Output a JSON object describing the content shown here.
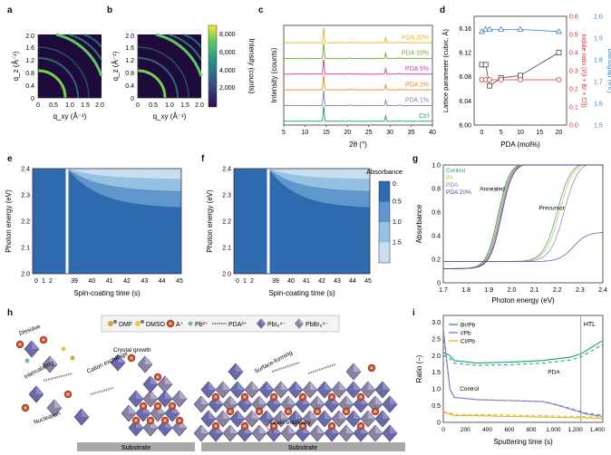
{
  "panels": {
    "a": {
      "label": "a",
      "y_label": "q_z (Å⁻¹)",
      "x_label": "q_xy (Å⁻¹)",
      "y_ticks": [
        "0",
        "0.4",
        "0.8",
        "1.2",
        "1.6",
        "2.0"
      ],
      "x_ticks": [
        "0",
        "0.5",
        "1.0",
        "1.5",
        "2.0"
      ]
    },
    "b": {
      "label": "b",
      "y_label": "q_z (Å⁻¹)",
      "x_label": "q_xy (Å⁻¹)",
      "y_ticks": [
        "0",
        "0.4",
        "0.8",
        "1.2",
        "1.6",
        "2.0"
      ],
      "x_ticks": [
        "0",
        "0.5",
        "1.0",
        "1.5",
        "2.0"
      ]
    },
    "colorbar_ab": {
      "label": "Intensity (counts)",
      "ticks": [
        "2,000",
        "4,000",
        "6,000",
        "8,000"
      ]
    },
    "c": {
      "label": "c"
    },
    "d": {
      "label": "d"
    },
    "e": {
      "label": "e",
      "y_label": "Photon energy (eV)",
      "x_label": "Spin-coating time (s)",
      "y_ticks": [
        "2.0",
        "2.1",
        "2.2",
        "2.3",
        "2.4"
      ],
      "x_ticks": [
        "0",
        "1",
        "2",
        "39",
        "40",
        "41",
        "42",
        "43",
        "44",
        "45"
      ]
    },
    "f": {
      "label": "f",
      "y_label": "Photon energy (eV)",
      "x_label": "Spin-coating time (s)",
      "y_ticks": [
        "2.0",
        "2.1",
        "2.2",
        "2.3",
        "2.4"
      ],
      "x_ticks": [
        "0",
        "1",
        "2",
        "39",
        "40",
        "41",
        "42",
        "43",
        "44",
        "45"
      ]
    },
    "colorbar_ef": {
      "title": "Absorbance",
      "ticks": [
        "0",
        "0.5",
        "1.0",
        "1.5"
      ]
    },
    "g": {
      "label": "g"
    },
    "h": {
      "label": "h",
      "legend": [
        "DMF",
        "DMSO",
        "A⁺",
        "Pb²⁺",
        "PDA²⁺",
        "PbI₆⁴⁻",
        "PbBr₆⁴⁻"
      ],
      "annotations": [
        "Dissolve",
        "Intercalating",
        "Crystal growth",
        "Cation exchange",
        "Nucleation",
        "Surface-forming",
        "Grain boundary"
      ],
      "substrate_left": "Substrate",
      "substrate_right": "Substrate"
    },
    "i": {
      "label": "i"
    }
  },
  "chart_data": [
    {
      "id": "c",
      "type": "line",
      "xlabel": "2θ (°)",
      "ylabel": "Intensity (counts)",
      "xlim": [
        5,
        40
      ],
      "x_ticks": [
        5,
        10,
        15,
        20,
        25,
        30,
        35,
        40
      ],
      "series": [
        {
          "name": "Ctrl",
          "color": "#1a9c83",
          "offset": 0
        },
        {
          "name": "PDA 1%",
          "color": "#7b7fc4",
          "offset": 1
        },
        {
          "name": "PDA 2%",
          "color": "#f08a24",
          "offset": 2
        },
        {
          "name": "PDA 5%",
          "color": "#e0349a",
          "offset": 3
        },
        {
          "name": "PDA 10%",
          "color": "#66b032",
          "offset": 4
        },
        {
          "name": "PDA 20%",
          "color": "#e6b422",
          "offset": 5
        }
      ],
      "peaks": [
        {
          "x": 14.4,
          "h": 1.0
        },
        {
          "x": 29.0,
          "h": 0.35
        },
        {
          "x": 20.4,
          "h": 0.05
        },
        {
          "x": 32.3,
          "h": 0.05
        }
      ]
    },
    {
      "id": "d",
      "type": "line",
      "xlabel": "PDA (mol%)",
      "ylabel": "Lattice parameter (cubic, Å)",
      "y2label": "Iodide ratio (I/(I + Br + Cl))",
      "y3label": "Bandgap (eV)",
      "xlim": [
        -2,
        22
      ],
      "x_ticks": [
        0,
        5,
        10,
        15,
        20
      ],
      "ylim": [
        6.0,
        6.18
      ],
      "y_ticks": [
        "6.00",
        "6.04",
        "6.08",
        "6.12",
        "6.16"
      ],
      "y2lim": [
        0.0,
        0.6
      ],
      "y2_ticks": [
        "0.0",
        "0.1",
        "0.2",
        "0.3",
        "0.4",
        "0.5",
        "0.6"
      ],
      "y3lim": [
        1.5,
        2.0
      ],
      "y3_ticks": [
        "1.5",
        "1.6",
        "1.7",
        "1.8",
        "1.9",
        "2.0"
      ],
      "series": [
        {
          "name": "Lattice parameter",
          "axis": "left",
          "color": "#444444",
          "marker": "square",
          "x": [
            0,
            1,
            2,
            5,
            10,
            20
          ],
          "y": [
            6.1,
            6.1,
            6.065,
            6.078,
            6.082,
            6.12
          ]
        },
        {
          "name": "Iodide ratio",
          "axis": "right",
          "color": "#e03030",
          "marker": "circle",
          "x": [
            0,
            1,
            2,
            5,
            10,
            20
          ],
          "y": [
            0.25,
            0.25,
            0.25,
            0.25,
            0.25,
            0.25
          ]
        },
        {
          "name": "Bandgap",
          "axis": "far-right",
          "color": "#3a86d0",
          "marker": "triangle",
          "x": [
            0,
            1,
            2,
            5,
            10,
            20
          ],
          "y": [
            1.93,
            1.94,
            1.94,
            1.94,
            1.94,
            1.93
          ]
        }
      ]
    },
    {
      "id": "e",
      "type": "heatmap",
      "xlabel": "Spin-coating time (s)",
      "ylabel": "Photon energy (eV)",
      "ylim": [
        2.0,
        2.4
      ],
      "x_segments": [
        [
          0,
          2
        ],
        [
          39,
          45
        ]
      ]
    },
    {
      "id": "f",
      "type": "heatmap",
      "xlabel": "Spin-coating time (s)",
      "ylabel": "Photon energy (eV)",
      "ylim": [
        2.0,
        2.4
      ],
      "x_segments": [
        [
          0,
          2
        ],
        [
          39,
          45
        ]
      ]
    },
    {
      "id": "g",
      "type": "line",
      "xlabel": "Photon energy (eV)",
      "ylabel": "Absorbance",
      "xlim": [
        1.7,
        2.4
      ],
      "x_ticks": [
        "1.7",
        "1.8",
        "1.9",
        "2.0",
        "2.1",
        "2.2",
        "2.3",
        "2.4"
      ],
      "ylim": [
        0,
        1.0
      ],
      "y_ticks": [
        "0",
        "0.2",
        "0.4",
        "0.6",
        "0.8",
        "1.0"
      ],
      "annotations": [
        "Annealed",
        "Precursor"
      ],
      "series": [
        {
          "name": "Control",
          "color": "#1a9c83"
        },
        {
          "name": "PA",
          "color": "#e6b422"
        },
        {
          "name": "PDA",
          "color": "#7b7fc4"
        },
        {
          "name": "PDA 20%",
          "color": "#4a3f9a"
        }
      ]
    },
    {
      "id": "i",
      "type": "line",
      "xlabel": "Sputtering time (s)",
      "ylabel": "Ratio (–)",
      "xlim": [
        0,
        1450
      ],
      "x_ticks": [
        "0",
        "200",
        "400",
        "600",
        "800",
        "1,000",
        "1,200",
        "1,400"
      ],
      "ylim": [
        0,
        3.2
      ],
      "y_ticks": [
        "0",
        "0.5",
        "1.0",
        "1.5",
        "2.0",
        "2.5",
        "3.0"
      ],
      "annotations": [
        "HTL",
        "Control",
        "PDA"
      ],
      "series": [
        {
          "name": "Br/Pb",
          "color": "#1a9c83",
          "x": [
            0,
            60,
            100,
            300,
            600,
            900,
            1150,
            1250,
            1300,
            1350,
            1400,
            1450
          ],
          "y": [
            2.1,
            2.0,
            1.85,
            1.78,
            1.8,
            1.85,
            1.95,
            2.05,
            2.15,
            2.25,
            2.35,
            2.45
          ]
        },
        {
          "name": "I/Pb",
          "color": "#7b7fc4",
          "x": [
            0,
            60,
            100,
            300,
            600,
            900,
            1000,
            1100,
            1200,
            1300,
            1400,
            1450
          ],
          "y": [
            2.8,
            1.0,
            0.75,
            0.68,
            0.65,
            0.62,
            0.55,
            0.45,
            0.35,
            0.25,
            0.2,
            0.18
          ]
        },
        {
          "name": "Cl/Pb",
          "color": "#e6b422",
          "x": [
            0,
            60,
            100,
            300,
            600,
            900,
            1200,
            1450
          ],
          "y": [
            0.3,
            0.25,
            0.2,
            0.2,
            0.18,
            0.16,
            0.14,
            0.12
          ]
        }
      ]
    }
  ]
}
